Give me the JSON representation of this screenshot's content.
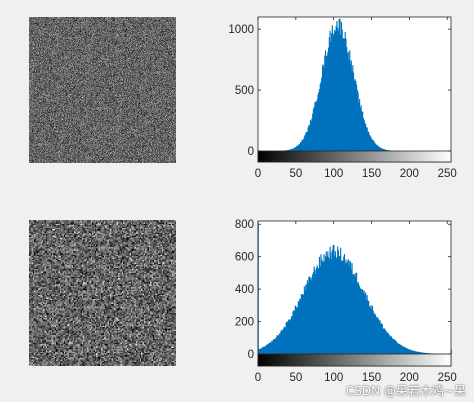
{
  "figure": {
    "background_color": "#f0f0f0",
    "bar_color": "#0072bd",
    "watermark": "CSDN @呆若木鸡~呆"
  },
  "images": [
    {
      "label": "noise image (top)",
      "noise_description": "fine-grained Gaussian gray noise centered near 100",
      "mean_gray": 100,
      "std_gray": 25
    },
    {
      "label": "noise image (bottom)",
      "noise_description": "coarser, higher-contrast Gaussian gray noise centered near 100",
      "mean_gray": 100,
      "std_gray": 45
    }
  ],
  "chart_data": [
    {
      "type": "bar",
      "title": "",
      "xlabel": "",
      "ylabel": "",
      "xlim": [
        0,
        255
      ],
      "ylim": [
        0,
        1100
      ],
      "xticks": [
        0,
        50,
        100,
        150,
        200,
        250
      ],
      "yticks": [
        0,
        500,
        1000
      ],
      "grid": false,
      "colorbar": "grayscale 0-255 strip below axis",
      "series": [
        {
          "x_center": 105,
          "peak_height": 1040,
          "sigma": 21,
          "x_range_nonzero": [
            40,
            175
          ],
          "values_by_x": [
            {
              "x": 50,
              "y": 15
            },
            {
              "x": 60,
              "y": 60
            },
            {
              "x": 70,
              "y": 180
            },
            {
              "x": 80,
              "y": 420
            },
            {
              "x": 90,
              "y": 760
            },
            {
              "x": 100,
              "y": 990
            },
            {
              "x": 105,
              "y": 1040
            },
            {
              "x": 110,
              "y": 1000
            },
            {
              "x": 120,
              "y": 800
            },
            {
              "x": 130,
              "y": 500
            },
            {
              "x": 140,
              "y": 230
            },
            {
              "x": 150,
              "y": 80
            },
            {
              "x": 160,
              "y": 20
            },
            {
              "x": 170,
              "y": 5
            }
          ]
        }
      ]
    },
    {
      "type": "bar",
      "title": "",
      "xlabel": "",
      "ylabel": "",
      "xlim": [
        0,
        255
      ],
      "ylim": [
        0,
        820
      ],
      "xticks": [
        0,
        50,
        100,
        150,
        200,
        250
      ],
      "yticks": [
        0,
        200,
        400,
        600,
        800
      ],
      "grid": false,
      "colorbar": "grayscale 0-255 strip below axis",
      "series": [
        {
          "x_center": 100,
          "peak_height": 630,
          "sigma": 40,
          "x_range_nonzero": [
            0,
            255
          ],
          "edge_spikes": [
            {
              "x": 0,
              "y": 800
            },
            {
              "x": 255,
              "y": 30
            }
          ],
          "values_by_x": [
            {
              "x": 10,
              "y": 40
            },
            {
              "x": 25,
              "y": 120
            },
            {
              "x": 50,
              "y": 300
            },
            {
              "x": 75,
              "y": 520
            },
            {
              "x": 100,
              "y": 630
            },
            {
              "x": 125,
              "y": 520
            },
            {
              "x": 150,
              "y": 300
            },
            {
              "x": 175,
              "y": 120
            },
            {
              "x": 200,
              "y": 35
            },
            {
              "x": 225,
              "y": 8
            },
            {
              "x": 250,
              "y": 2
            }
          ]
        }
      ]
    }
  ]
}
